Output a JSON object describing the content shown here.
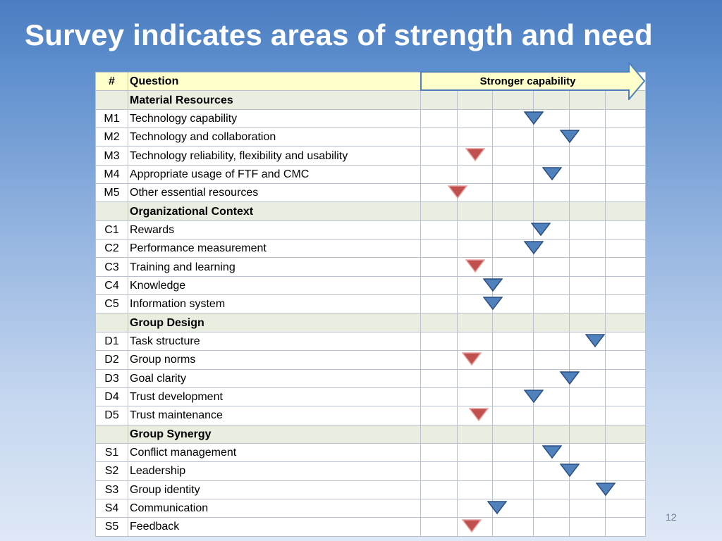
{
  "title": "Survey indicates areas of strength and need",
  "table": {
    "header_num": "#",
    "header_question": "Question",
    "scale_label": "Stronger capability"
  },
  "sections": [
    {
      "name": "Material Resources",
      "rows": [
        {
          "id": "M1",
          "question": "Technology capability",
          "position": 3,
          "type": "strength"
        },
        {
          "id": "M2",
          "question": "Technology and collaboration",
          "position": 4,
          "type": "strength"
        },
        {
          "id": "M3",
          "question": "Technology reliability, flexibility and usability",
          "position": 1.5,
          "type": "need"
        },
        {
          "id": "M4",
          "question": " Appropriate usage of FTF and CMC",
          "position": 3.5,
          "type": "strength"
        },
        {
          "id": "M5",
          "question": "Other essential resources",
          "position": 1,
          "type": "need"
        }
      ]
    },
    {
      "name": "Organizational Context",
      "rows": [
        {
          "id": "C1",
          "question": "Rewards",
          "position": 3.2,
          "type": "strength"
        },
        {
          "id": "C2",
          "question": "Performance measurement",
          "position": 3,
          "type": "strength"
        },
        {
          "id": "C3",
          "question": "Training and learning",
          "position": 1.5,
          "type": "need"
        },
        {
          "id": "C4",
          "question": "Knowledge",
          "position": 2,
          "type": "strength"
        },
        {
          "id": "C5",
          "question": "Information system",
          "position": 2,
          "type": "strength"
        }
      ]
    },
    {
      "name": "Group Design",
      "rows": [
        {
          "id": "D1",
          "question": "Task structure",
          "position": 4.7,
          "type": "strength"
        },
        {
          "id": "D2",
          "question": "Group norms",
          "position": 1.4,
          "type": "need"
        },
        {
          "id": "D3",
          "question": "Goal clarity",
          "position": 4,
          "type": "strength"
        },
        {
          "id": "D4",
          "question": "Trust development",
          "position": 3,
          "type": "strength"
        },
        {
          "id": "D5",
          "question": "Trust maintenance",
          "position": 1.6,
          "type": "need"
        }
      ]
    },
    {
      "name": "Group Synergy",
      "rows": [
        {
          "id": "S1",
          "question": "Conflict management",
          "position": 3.5,
          "type": "strength"
        },
        {
          "id": "S2",
          "question": "Leadership",
          "position": 4,
          "type": "strength"
        },
        {
          "id": "S3",
          "question": "Group identity",
          "position": 5,
          "type": "strength"
        },
        {
          "id": "S4",
          "question": "Communication",
          "position": 2.1,
          "type": "strength"
        },
        {
          "id": "S5",
          "question": "Feedback",
          "position": 1.4,
          "type": "need"
        }
      ]
    }
  ],
  "colors": {
    "strength": "#4f81bd",
    "need": "#c0504d"
  },
  "page_number": "12"
}
